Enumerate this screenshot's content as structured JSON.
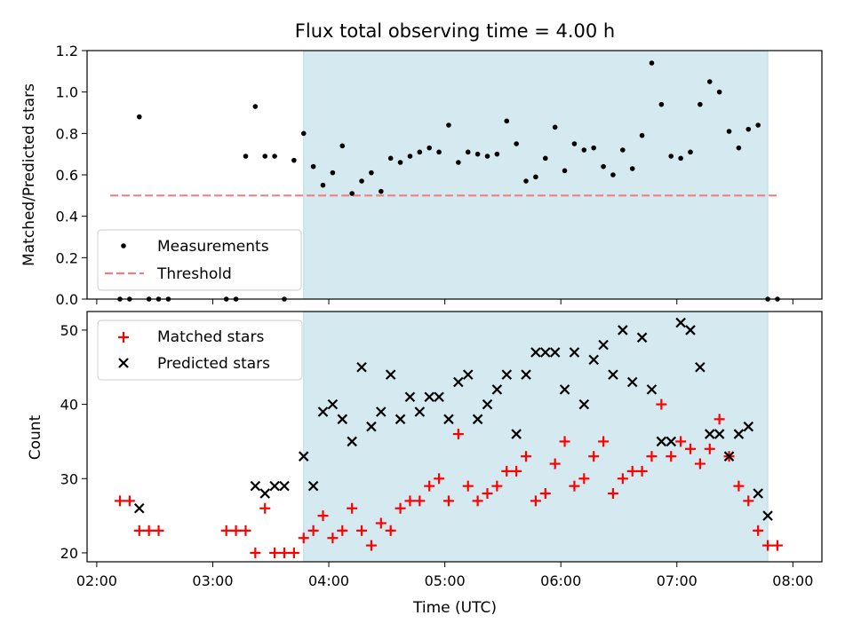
{
  "chart_data": [
    {
      "type": "scatter",
      "title": "Flux total observing time = 4.00 h",
      "xlabel": "",
      "ylabel": "Matched/Predicted stars",
      "ylim": [
        0,
        1.2
      ],
      "yticks": [
        "0.0",
        "0.2",
        "0.4",
        "0.6",
        "0.8",
        "1.0",
        "1.2"
      ],
      "xlim": [
        "01:55",
        "08:15"
      ],
      "shaded_span": [
        "03:47",
        "07:47"
      ],
      "shade_color": "#d4eaf0",
      "legend_position": "lower left",
      "series": [
        {
          "name": "Measurements",
          "marker": "dot",
          "color": "#000000",
          "x": [
            "02:12",
            "02:17",
            "02:22",
            "02:27",
            "02:32",
            "02:37",
            "03:07",
            "03:12",
            "03:17",
            "03:22",
            "03:27",
            "03:32",
            "03:37",
            "03:42",
            "03:47",
            "03:52",
            "03:57",
            "04:02",
            "04:07",
            "04:12",
            "04:17",
            "04:22",
            "04:27",
            "04:32",
            "04:37",
            "04:42",
            "04:47",
            "04:52",
            "04:57",
            "05:02",
            "05:07",
            "05:12",
            "05:17",
            "05:22",
            "05:27",
            "05:32",
            "05:37",
            "05:42",
            "05:47",
            "05:52",
            "05:57",
            "06:02",
            "06:07",
            "06:12",
            "06:17",
            "06:22",
            "06:27",
            "06:32",
            "06:37",
            "06:42",
            "06:47",
            "06:52",
            "06:57",
            "07:02",
            "07:07",
            "07:12",
            "07:17",
            "07:22",
            "07:27",
            "07:32",
            "07:37",
            "07:42",
            "07:47",
            "07:52"
          ],
          "y": [
            0.0,
            0.0,
            0.88,
            0.0,
            0.0,
            0.0,
            0.0,
            0.0,
            0.69,
            0.93,
            0.69,
            0.69,
            0.0,
            0.67,
            0.8,
            0.64,
            0.55,
            0.61,
            0.74,
            0.51,
            0.57,
            0.61,
            0.52,
            0.68,
            0.66,
            0.69,
            0.71,
            0.73,
            0.71,
            0.84,
            0.66,
            0.71,
            0.7,
            0.69,
            0.7,
            0.86,
            0.75,
            0.57,
            0.59,
            0.68,
            0.83,
            0.62,
            0.75,
            0.72,
            0.73,
            0.64,
            0.6,
            0.72,
            0.63,
            0.79,
            1.14,
            0.94,
            0.69,
            0.68,
            0.71,
            0.94,
            1.05,
            1.0,
            0.81,
            0.73,
            0.82,
            0.84,
            0.0,
            0.0
          ]
        },
        {
          "name": "Threshold",
          "type": "dashed-line",
          "color": "#f08080",
          "x": [
            "02:07",
            "07:52"
          ],
          "y": [
            0.5,
            0.5
          ]
        }
      ]
    },
    {
      "type": "scatter",
      "title": "",
      "xlabel": "Time (UTC)",
      "ylabel": "Count",
      "ylim": [
        18.8,
        52.5
      ],
      "yticks": [
        "20",
        "30",
        "40",
        "50"
      ],
      "xticks": [
        "02:00",
        "03:00",
        "04:00",
        "05:00",
        "06:00",
        "07:00",
        "08:00"
      ],
      "xlim": [
        "01:55",
        "08:15"
      ],
      "shaded_span": [
        "03:47",
        "07:47"
      ],
      "legend_position": "upper left",
      "series": [
        {
          "name": "Matched stars",
          "marker": "plus",
          "color": "#ff0000",
          "x": [
            "02:12",
            "02:17",
            "02:22",
            "02:27",
            "02:32",
            "03:07",
            "03:12",
            "03:17",
            "03:22",
            "03:27",
            "03:32",
            "03:37",
            "03:42",
            "03:47",
            "03:52",
            "03:57",
            "04:02",
            "04:07",
            "04:12",
            "04:17",
            "04:22",
            "04:27",
            "04:32",
            "04:37",
            "04:42",
            "04:47",
            "04:52",
            "04:57",
            "05:02",
            "05:07",
            "05:12",
            "05:17",
            "05:22",
            "05:27",
            "05:32",
            "05:37",
            "05:42",
            "05:47",
            "05:52",
            "05:57",
            "06:02",
            "06:07",
            "06:12",
            "06:17",
            "06:22",
            "06:27",
            "06:32",
            "06:37",
            "06:42",
            "06:47",
            "06:52",
            "06:57",
            "07:02",
            "07:07",
            "07:12",
            "07:17",
            "07:22",
            "07:27",
            "07:32",
            "07:37",
            "07:42",
            "07:47",
            "07:52"
          ],
          "y": [
            27,
            27,
            23,
            23,
            23,
            23,
            23,
            23,
            20,
            26,
            20,
            20,
            20,
            22,
            23,
            25,
            22,
            23,
            26,
            23,
            21,
            24,
            23,
            26,
            27,
            27,
            29,
            30,
            27,
            36,
            29,
            27,
            28,
            29,
            31,
            31,
            33,
            27,
            28,
            32,
            35,
            29,
            30,
            33,
            35,
            28,
            30,
            31,
            31,
            33,
            40,
            33,
            35,
            34,
            32,
            34,
            38,
            33,
            29,
            27,
            23,
            21,
            21
          ]
        },
        {
          "name": "Predicted stars",
          "marker": "x",
          "color": "#000000",
          "x": [
            "02:22",
            "03:22",
            "03:27",
            "03:32",
            "03:37",
            "03:47",
            "03:52",
            "03:57",
            "04:02",
            "04:07",
            "04:12",
            "04:17",
            "04:22",
            "04:27",
            "04:32",
            "04:37",
            "04:42",
            "04:47",
            "04:52",
            "04:57",
            "05:02",
            "05:07",
            "05:12",
            "05:17",
            "05:22",
            "05:27",
            "05:32",
            "05:37",
            "05:42",
            "05:47",
            "05:52",
            "05:57",
            "06:02",
            "06:07",
            "06:12",
            "06:17",
            "06:22",
            "06:27",
            "06:32",
            "06:37",
            "06:42",
            "06:47",
            "06:52",
            "06:57",
            "07:02",
            "07:07",
            "07:12",
            "07:17",
            "07:22",
            "07:27",
            "07:32",
            "07:37",
            "07:42",
            "07:47"
          ],
          "y": [
            26,
            29,
            28,
            29,
            29,
            33,
            29,
            39,
            40,
            38,
            35,
            45,
            37,
            39,
            44,
            38,
            41,
            39,
            41,
            41,
            38,
            43,
            44,
            38,
            40,
            42,
            44,
            36,
            44,
            47,
            47,
            47,
            42,
            47,
            40,
            46,
            48,
            44,
            50,
            43,
            49,
            42,
            35,
            35,
            51,
            50,
            45,
            36,
            36,
            33,
            36,
            37,
            28,
            25
          ]
        }
      ]
    }
  ]
}
